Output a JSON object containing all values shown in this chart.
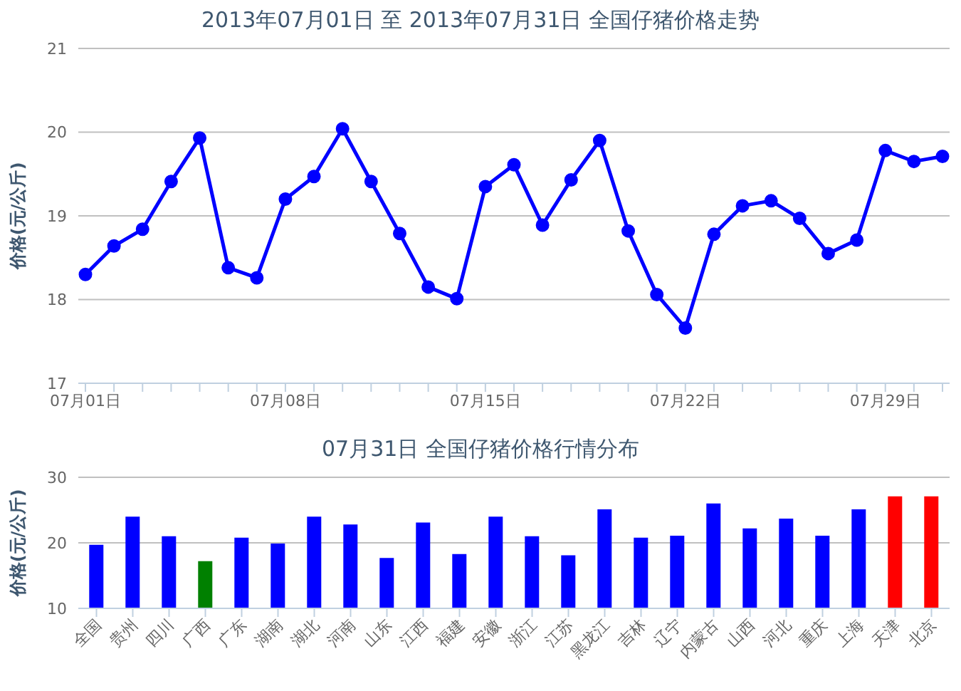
{
  "chart_data": [
    {
      "type": "line",
      "title": "2013年07月01日 至 2013年07月31日 全国仔猪价格走势",
      "ylabel": "价格(元/公斤)",
      "categories": [
        "07月01日",
        null,
        null,
        null,
        null,
        null,
        null,
        "07月08日",
        null,
        null,
        null,
        null,
        null,
        null,
        "07月15日",
        null,
        null,
        null,
        null,
        null,
        null,
        "07月22日",
        null,
        null,
        null,
        null,
        null,
        null,
        "07月29日",
        null,
        null
      ],
      "series": [
        {
          "color": "#0000ff",
          "values": [
            18.3,
            18.64,
            18.84,
            19.41,
            19.93,
            18.38,
            18.26,
            19.2,
            19.47,
            20.04,
            19.41,
            18.79,
            18.15,
            18.01,
            19.35,
            19.61,
            18.89,
            19.43,
            19.9,
            18.82,
            18.06,
            17.66,
            18.78,
            19.12,
            19.18,
            18.97,
            18.55,
            18.71,
            19.78,
            19.65,
            19.71
          ]
        }
      ],
      "ylim": [
        17,
        21
      ],
      "yticks": [
        17,
        18,
        19,
        20,
        21
      ],
      "grid": "y",
      "marker": "circle"
    },
    {
      "type": "bar",
      "title": "07月31日 全国仔猪价格行情分布",
      "ylabel": "价格(元/公斤)",
      "categories": [
        "全国",
        "贵州",
        "四川",
        "广西",
        "广东",
        "湖南",
        "湖北",
        "河南",
        "山东",
        "江西",
        "福建",
        "安徽",
        "浙江",
        "江苏",
        "黑龙江",
        "吉林",
        "辽宁",
        "内蒙古",
        "山西",
        "河北",
        "重庆",
        "上海",
        "天津",
        "北京"
      ],
      "values": [
        19.7,
        24.0,
        21.0,
        17.2,
        20.8,
        19.9,
        24.0,
        22.8,
        17.7,
        23.1,
        18.3,
        24.0,
        21.0,
        18.1,
        25.1,
        20.8,
        21.1,
        26.0,
        22.2,
        23.7,
        21.1,
        25.1,
        27.1,
        27.1
      ],
      "colors": [
        "#0000ff",
        "#0000ff",
        "#0000ff",
        "#008000",
        "#0000ff",
        "#0000ff",
        "#0000ff",
        "#0000ff",
        "#0000ff",
        "#0000ff",
        "#0000ff",
        "#0000ff",
        "#0000ff",
        "#0000ff",
        "#0000ff",
        "#0000ff",
        "#0000ff",
        "#0000ff",
        "#0000ff",
        "#0000ff",
        "#0000ff",
        "#0000ff",
        "#ff0000",
        "#ff0000"
      ],
      "ylim": [
        10,
        30
      ],
      "yticks": [
        10,
        20,
        30
      ],
      "grid": "y"
    }
  ]
}
